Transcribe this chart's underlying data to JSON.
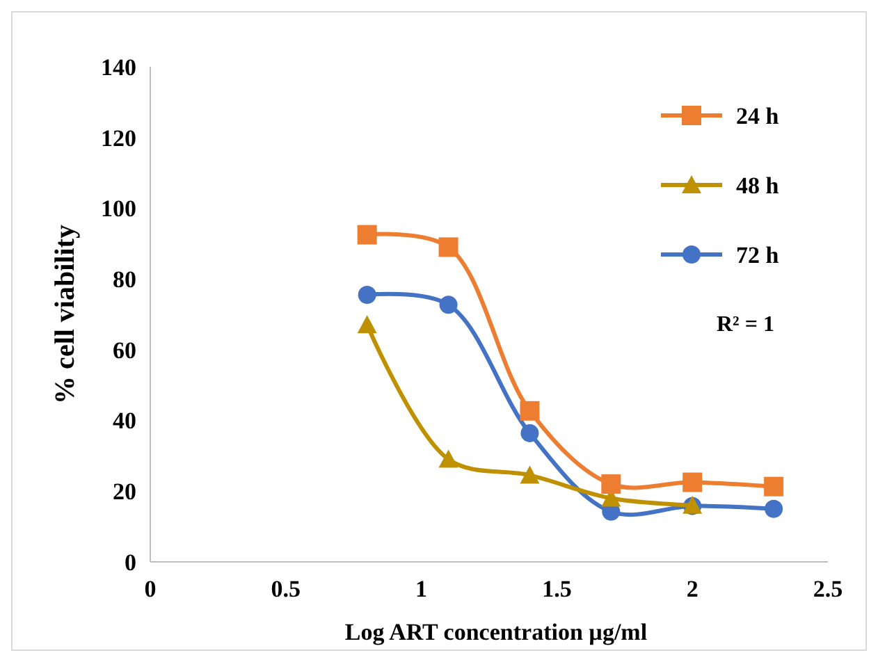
{
  "chart_data": {
    "type": "line",
    "xlabel": "Log  ART concentration µg/ml",
    "ylabel": "%  cell viability",
    "xlim": [
      0,
      2.5
    ],
    "xticks": [
      0,
      0.5,
      1,
      1.5,
      2,
      2.5
    ],
    "ylim": [
      0,
      140
    ],
    "yticks": [
      0,
      20,
      40,
      60,
      80,
      100,
      120,
      140
    ],
    "grid": false,
    "legend": "top right",
    "annotations": [
      "R² = 1"
    ],
    "series": [
      {
        "name": "24 h",
        "color": "#ed7d31",
        "marker": "square",
        "x": [
          0.8,
          1.1,
          1.4,
          1.7,
          2.0,
          2.3
        ],
        "values": [
          92.5,
          89,
          42.7,
          22,
          22.5,
          21.3
        ]
      },
      {
        "name": "48 h",
        "color": "#bf9000",
        "marker": "triangle",
        "x": [
          0.8,
          1.1,
          1.4,
          1.7,
          2.0
        ],
        "values": [
          67,
          29,
          24.5,
          18,
          16
        ]
      },
      {
        "name": "72 h",
        "color": "#4472c4",
        "marker": "circle",
        "x": [
          0.8,
          1.1,
          1.4,
          1.7,
          2.0,
          2.3
        ],
        "values": [
          75.5,
          72.7,
          36.4,
          14.2,
          15.8,
          15
        ]
      }
    ]
  }
}
